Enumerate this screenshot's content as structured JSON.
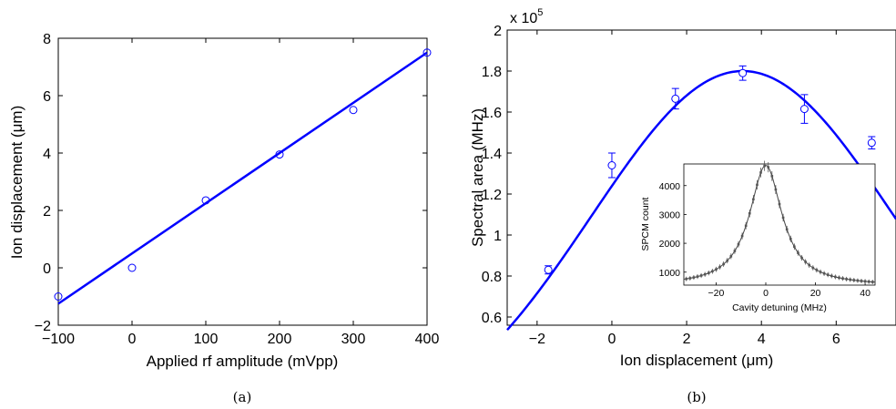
{
  "chart_data": [
    {
      "type": "scatter",
      "xlabel": "Applied rf amplitude (mVpp)",
      "ylabel": "Ion displacement (μm)",
      "caption": "(a)",
      "xlim": [
        -100,
        400
      ],
      "ylim": [
        -2,
        8
      ],
      "xticks": [
        -100,
        0,
        100,
        200,
        300,
        400
      ],
      "xtick_labels": [
        "−100",
        "0",
        "100",
        "200",
        "300",
        "400"
      ],
      "yticks": [
        -2,
        0,
        2,
        4,
        6,
        8
      ],
      "ytick_labels": [
        "−2",
        "0",
        "2",
        "4",
        "6",
        "8"
      ],
      "points": {
        "x": [
          -100,
          0,
          100,
          200,
          300,
          400
        ],
        "y": [
          -1.0,
          0.0,
          2.35,
          3.95,
          5.5,
          7.5
        ]
      },
      "fit_line": {
        "x": [
          -100,
          400
        ],
        "y": [
          -1.25,
          7.5
        ]
      },
      "color": "#0000ff"
    },
    {
      "type": "scatter",
      "xlabel": "Ion displacement (μm)",
      "ylabel": "Spectral area (MHz)",
      "caption": "(b)",
      "scale_prefix": "x 10",
      "scale_exponent": "5",
      "xlim": [
        -2.8,
        7.6
      ],
      "ylim": [
        0.56,
        2.0
      ],
      "xticks": [
        -2,
        0,
        2,
        4,
        6
      ],
      "xtick_labels": [
        "−2",
        "0",
        "2",
        "4",
        "6"
      ],
      "yticks": [
        0.6,
        0.8,
        1.0,
        1.2,
        1.4,
        1.6,
        1.8,
        2.0
      ],
      "ytick_labels": [
        "0.6",
        "0.8",
        "1",
        "1.2",
        "1.4",
        "1.6",
        "1.8",
        "2"
      ],
      "points": {
        "x": [
          -1.7,
          0.0,
          1.7,
          3.5,
          5.15,
          6.95
        ],
        "y": [
          0.83,
          1.34,
          1.665,
          1.79,
          1.615,
          1.45
        ],
        "err": [
          0.02,
          0.06,
          0.05,
          0.035,
          0.07,
          0.03
        ]
      },
      "fit_curve": {
        "type": "gaussian",
        "center": 3.5,
        "amplitude": 1.8,
        "sigma": 4.05
      },
      "color": "#0000ff",
      "inset": {
        "xlabel": "Cavity detuning (MHz)",
        "ylabel": "SPCM count",
        "xlim": [
          -33,
          44
        ],
        "ylim": [
          550,
          4750
        ],
        "xticks": [
          -20,
          0,
          20,
          40
        ],
        "xtick_labels": [
          "−20",
          "0",
          "20",
          "40"
        ],
        "yticks": [
          1000,
          2000,
          3000,
          4000
        ],
        "ytick_labels": [
          "1000",
          "2000",
          "3000",
          "4000"
        ],
        "lorentzian": {
          "center": 0,
          "hwhm": 8.0,
          "peak": 4700,
          "offset": 520
        },
        "color": "#555555"
      }
    }
  ]
}
